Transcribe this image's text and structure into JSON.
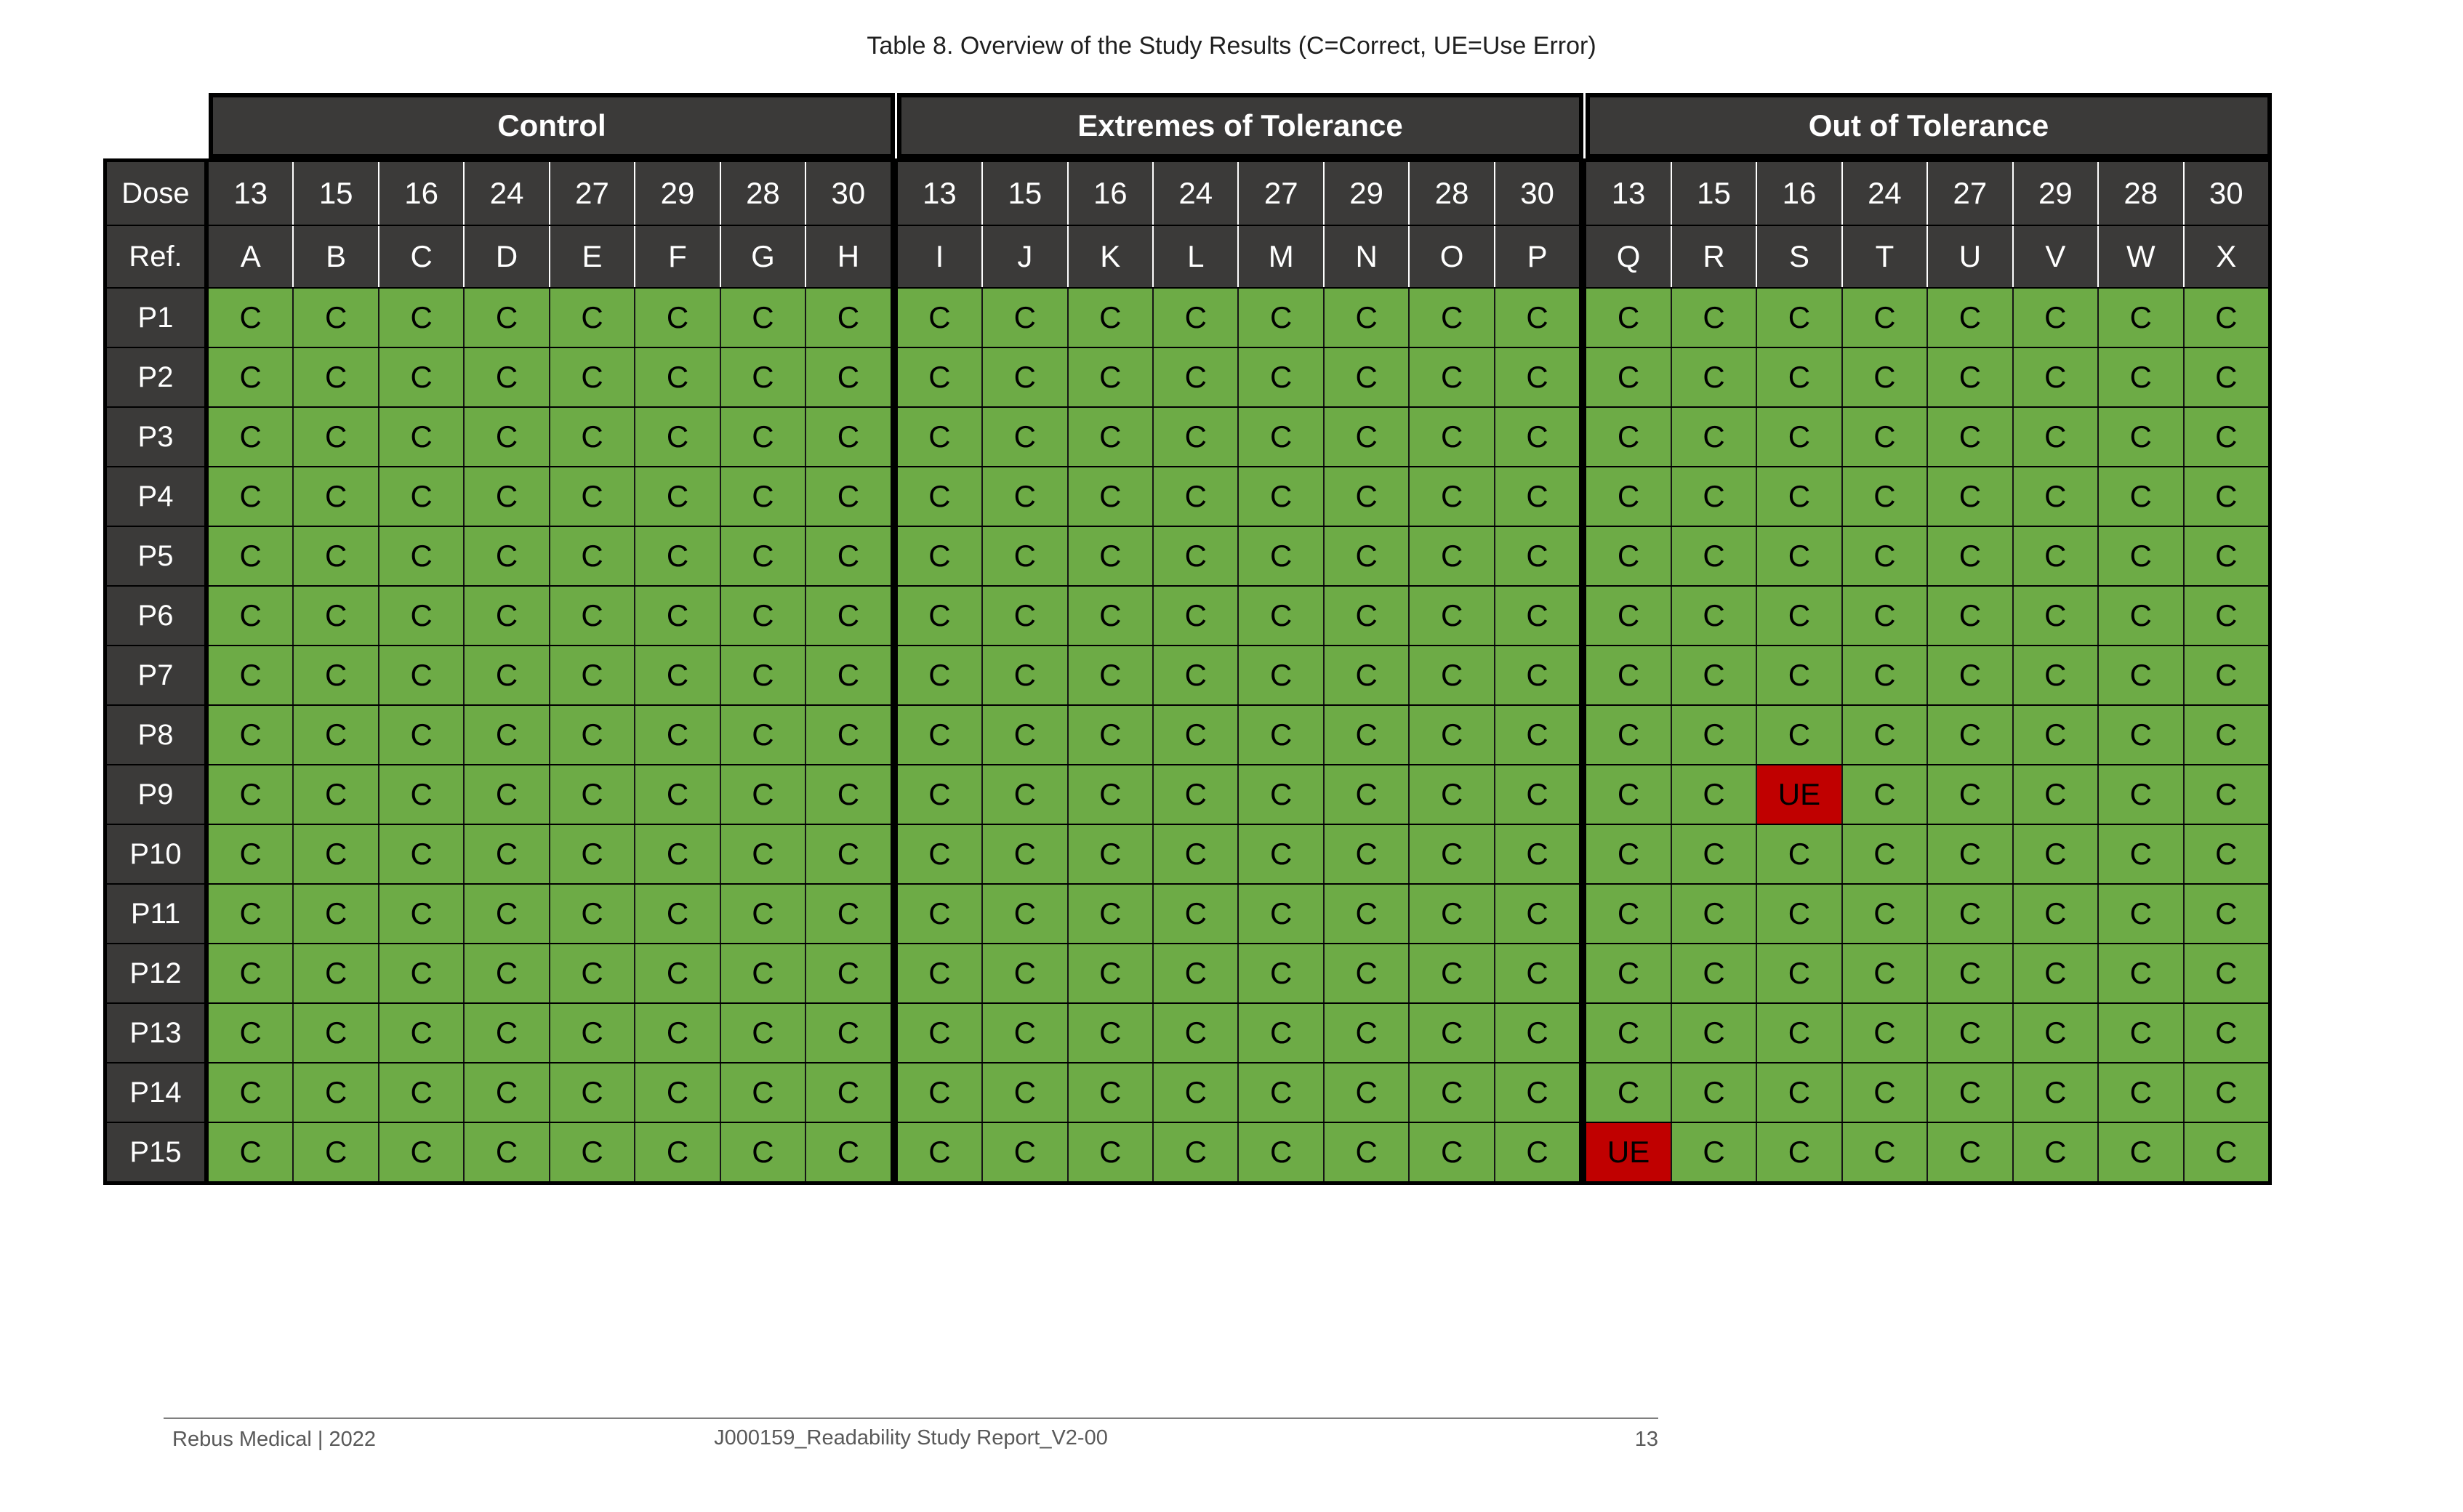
{
  "title": "Table 8. Overview of the Study Results (C=Correct, UE=Use Error)",
  "colors": {
    "header_dark": "#3B3A39",
    "correct_green": "#6DAB46",
    "use_error_red": "#C00000"
  },
  "table": {
    "dose_label": "Dose",
    "ref_label": "Ref.",
    "sections": [
      {
        "label": "Control",
        "doses": [
          "13",
          "15",
          "16",
          "24",
          "27",
          "29",
          "28",
          "30"
        ],
        "refs": [
          "A",
          "B",
          "C",
          "D",
          "E",
          "F",
          "G",
          "H"
        ]
      },
      {
        "label": "Extremes of Tolerance",
        "doses": [
          "13",
          "15",
          "16",
          "24",
          "27",
          "29",
          "28",
          "30"
        ],
        "refs": [
          "I",
          "J",
          "K",
          "L",
          "M",
          "N",
          "O",
          "P"
        ]
      },
      {
        "label": "Out of Tolerance",
        "doses": [
          "13",
          "15",
          "16",
          "24",
          "27",
          "29",
          "28",
          "30"
        ],
        "refs": [
          "Q",
          "R",
          "S",
          "T",
          "U",
          "V",
          "W",
          "X"
        ]
      }
    ],
    "rows": [
      {
        "label": "P1",
        "cells": [
          "C",
          "C",
          "C",
          "C",
          "C",
          "C",
          "C",
          "C",
          "C",
          "C",
          "C",
          "C",
          "C",
          "C",
          "C",
          "C",
          "C",
          "C",
          "C",
          "C",
          "C",
          "C",
          "C",
          "C"
        ]
      },
      {
        "label": "P2",
        "cells": [
          "C",
          "C",
          "C",
          "C",
          "C",
          "C",
          "C",
          "C",
          "C",
          "C",
          "C",
          "C",
          "C",
          "C",
          "C",
          "C",
          "C",
          "C",
          "C",
          "C",
          "C",
          "C",
          "C",
          "C"
        ]
      },
      {
        "label": "P3",
        "cells": [
          "C",
          "C",
          "C",
          "C",
          "C",
          "C",
          "C",
          "C",
          "C",
          "C",
          "C",
          "C",
          "C",
          "C",
          "C",
          "C",
          "C",
          "C",
          "C",
          "C",
          "C",
          "C",
          "C",
          "C"
        ]
      },
      {
        "label": "P4",
        "cells": [
          "C",
          "C",
          "C",
          "C",
          "C",
          "C",
          "C",
          "C",
          "C",
          "C",
          "C",
          "C",
          "C",
          "C",
          "C",
          "C",
          "C",
          "C",
          "C",
          "C",
          "C",
          "C",
          "C",
          "C"
        ]
      },
      {
        "label": "P5",
        "cells": [
          "C",
          "C",
          "C",
          "C",
          "C",
          "C",
          "C",
          "C",
          "C",
          "C",
          "C",
          "C",
          "C",
          "C",
          "C",
          "C",
          "C",
          "C",
          "C",
          "C",
          "C",
          "C",
          "C",
          "C"
        ]
      },
      {
        "label": "P6",
        "cells": [
          "C",
          "C",
          "C",
          "C",
          "C",
          "C",
          "C",
          "C",
          "C",
          "C",
          "C",
          "C",
          "C",
          "C",
          "C",
          "C",
          "C",
          "C",
          "C",
          "C",
          "C",
          "C",
          "C",
          "C"
        ]
      },
      {
        "label": "P7",
        "cells": [
          "C",
          "C",
          "C",
          "C",
          "C",
          "C",
          "C",
          "C",
          "C",
          "C",
          "C",
          "C",
          "C",
          "C",
          "C",
          "C",
          "C",
          "C",
          "C",
          "C",
          "C",
          "C",
          "C",
          "C"
        ]
      },
      {
        "label": "P8",
        "cells": [
          "C",
          "C",
          "C",
          "C",
          "C",
          "C",
          "C",
          "C",
          "C",
          "C",
          "C",
          "C",
          "C",
          "C",
          "C",
          "C",
          "C",
          "C",
          "C",
          "C",
          "C",
          "C",
          "C",
          "C"
        ]
      },
      {
        "label": "P9",
        "cells": [
          "C",
          "C",
          "C",
          "C",
          "C",
          "C",
          "C",
          "C",
          "C",
          "C",
          "C",
          "C",
          "C",
          "C",
          "C",
          "C",
          "C",
          "C",
          "UE",
          "C",
          "C",
          "C",
          "C",
          "C"
        ]
      },
      {
        "label": "P10",
        "cells": [
          "C",
          "C",
          "C",
          "C",
          "C",
          "C",
          "C",
          "C",
          "C",
          "C",
          "C",
          "C",
          "C",
          "C",
          "C",
          "C",
          "C",
          "C",
          "C",
          "C",
          "C",
          "C",
          "C",
          "C"
        ]
      },
      {
        "label": "P11",
        "cells": [
          "C",
          "C",
          "C",
          "C",
          "C",
          "C",
          "C",
          "C",
          "C",
          "C",
          "C",
          "C",
          "C",
          "C",
          "C",
          "C",
          "C",
          "C",
          "C",
          "C",
          "C",
          "C",
          "C",
          "C"
        ]
      },
      {
        "label": "P12",
        "cells": [
          "C",
          "C",
          "C",
          "C",
          "C",
          "C",
          "C",
          "C",
          "C",
          "C",
          "C",
          "C",
          "C",
          "C",
          "C",
          "C",
          "C",
          "C",
          "C",
          "C",
          "C",
          "C",
          "C",
          "C"
        ]
      },
      {
        "label": "P13",
        "cells": [
          "C",
          "C",
          "C",
          "C",
          "C",
          "C",
          "C",
          "C",
          "C",
          "C",
          "C",
          "C",
          "C",
          "C",
          "C",
          "C",
          "C",
          "C",
          "C",
          "C",
          "C",
          "C",
          "C",
          "C"
        ]
      },
      {
        "label": "P14",
        "cells": [
          "C",
          "C",
          "C",
          "C",
          "C",
          "C",
          "C",
          "C",
          "C",
          "C",
          "C",
          "C",
          "C",
          "C",
          "C",
          "C",
          "C",
          "C",
          "C",
          "C",
          "C",
          "C",
          "C",
          "C"
        ]
      },
      {
        "label": "P15",
        "cells": [
          "C",
          "C",
          "C",
          "C",
          "C",
          "C",
          "C",
          "C",
          "C",
          "C",
          "C",
          "C",
          "C",
          "C",
          "C",
          "C",
          "UE",
          "C",
          "C",
          "C",
          "C",
          "C",
          "C",
          "C"
        ]
      }
    ]
  },
  "footer": {
    "left": "Rebus Medical | 2022",
    "center": "J000159_Readability Study Report_V2-00",
    "page_number": "13"
  }
}
